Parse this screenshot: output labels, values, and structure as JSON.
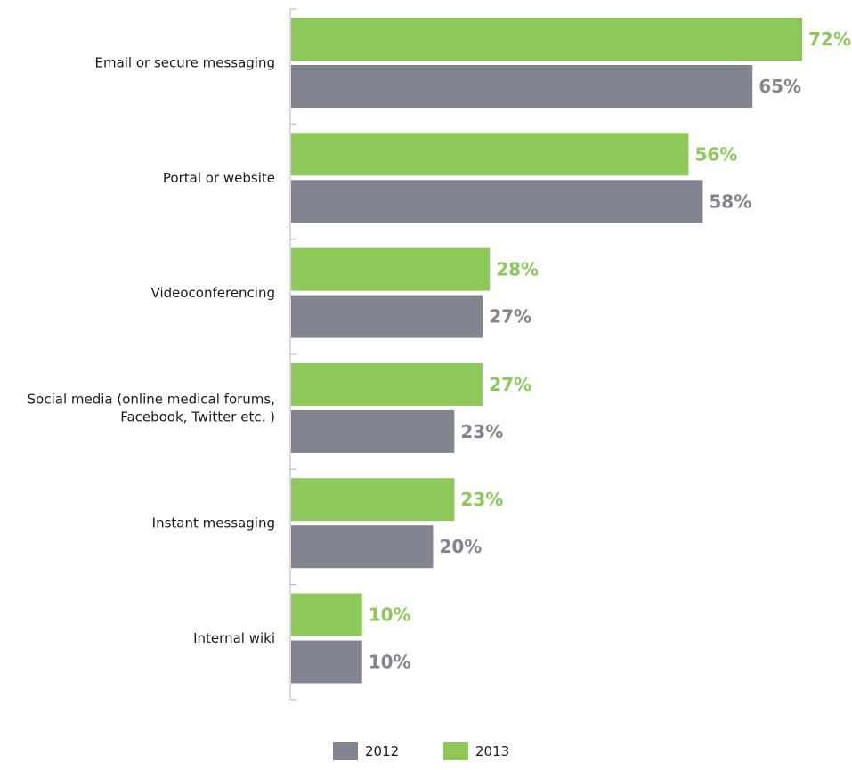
{
  "chart_data": {
    "type": "bar",
    "orientation": "horizontal",
    "categories": [
      [
        "Email or secure messaging"
      ],
      [
        "Portal or website"
      ],
      [
        "Videoconferencing"
      ],
      [
        "Social media (online medical forums,",
        "Facebook, Twitter etc. )"
      ],
      [
        "Instant messaging"
      ],
      [
        "Internal wiki"
      ]
    ],
    "series": [
      {
        "name": "2013",
        "color": "#8dc85a",
        "values": [
          72,
          56,
          28,
          27,
          23,
          10
        ]
      },
      {
        "name": "2012",
        "color": "#82858f",
        "values": [
          65,
          58,
          27,
          23,
          20,
          10
        ]
      }
    ],
    "value_suffix": "%",
    "xlim": [
      0,
      100
    ],
    "legend": {
      "placement": "bottom-center",
      "order": [
        "2012",
        "2013"
      ]
    },
    "grid": false,
    "title": "",
    "xlabel": "",
    "ylabel": ""
  }
}
